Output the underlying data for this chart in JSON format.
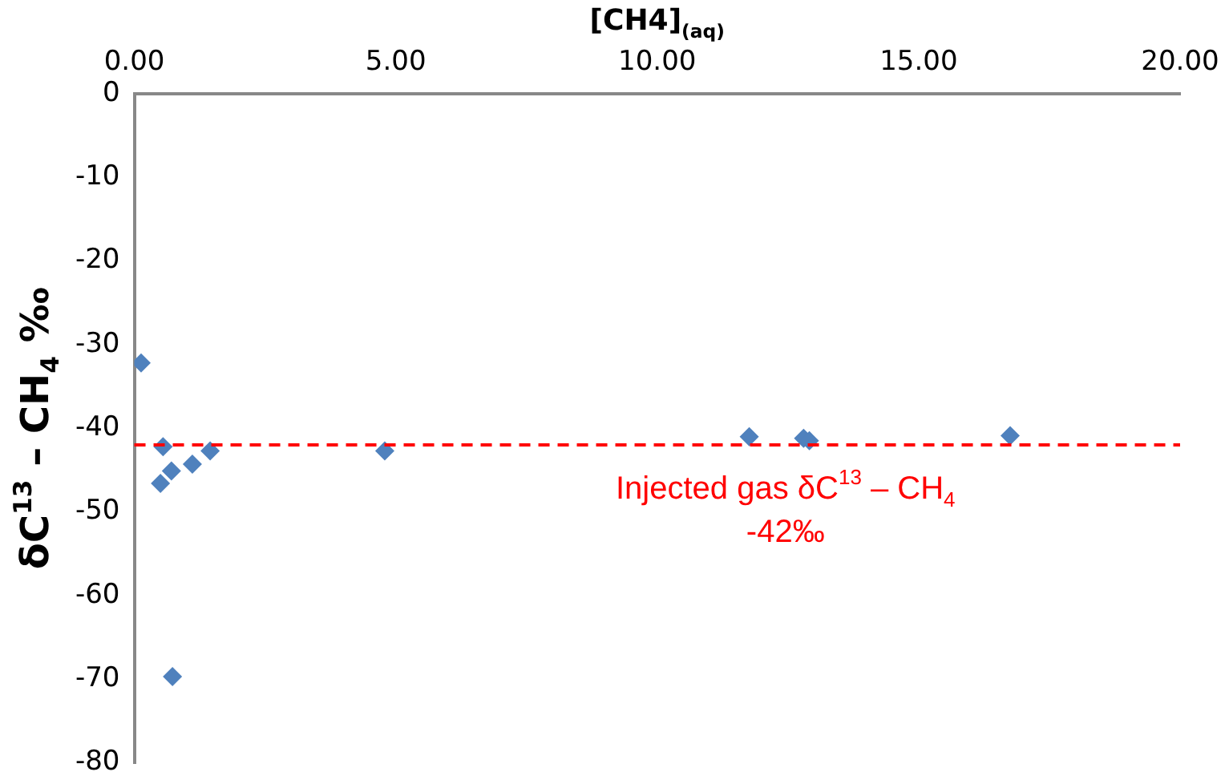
{
  "chart_data": {
    "type": "scatter",
    "xlabel": "[CH4]$_{(aq)}$",
    "ylabel": "δC$^{13}$ – CH$_{4}$ ‰",
    "x": [
      0.13,
      0.55,
      0.71,
      0.5,
      1.11,
      1.45,
      0.73,
      4.79,
      11.76,
      12.8,
      12.91,
      16.75
    ],
    "series": [
      {
        "color": "#4f81bd",
        "values": [
          -32.2,
          -42.2,
          -45.1,
          -46.6,
          -44.3,
          -42.7,
          -69.7,
          -42.7,
          -41.0,
          -41.2,
          -41.5,
          -40.9
        ]
      }
    ],
    "xlim": [
      0,
      20
    ],
    "xticks": [
      {
        "value": 0,
        "label": "0.00"
      },
      {
        "value": 5,
        "label": "5.00"
      },
      {
        "value": 10,
        "label": "10.00"
      },
      {
        "value": 15,
        "label": "15.00"
      },
      {
        "value": 20,
        "label": "20.00"
      }
    ],
    "ylim": [
      -80,
      0
    ],
    "yticks": [
      -80,
      -70,
      -60,
      -50,
      -40,
      -30,
      -20,
      -10,
      0
    ],
    "ref_lines": [
      {
        "axis": "y",
        "value": -42,
        "label": "Injected gas δC$^{13}$ – CH$_{4}$\n-42‰",
        "color": "#ff0000",
        "line_style": "dashed"
      }
    ],
    "grid": false,
    "legend": false,
    "marker": "diamond"
  }
}
